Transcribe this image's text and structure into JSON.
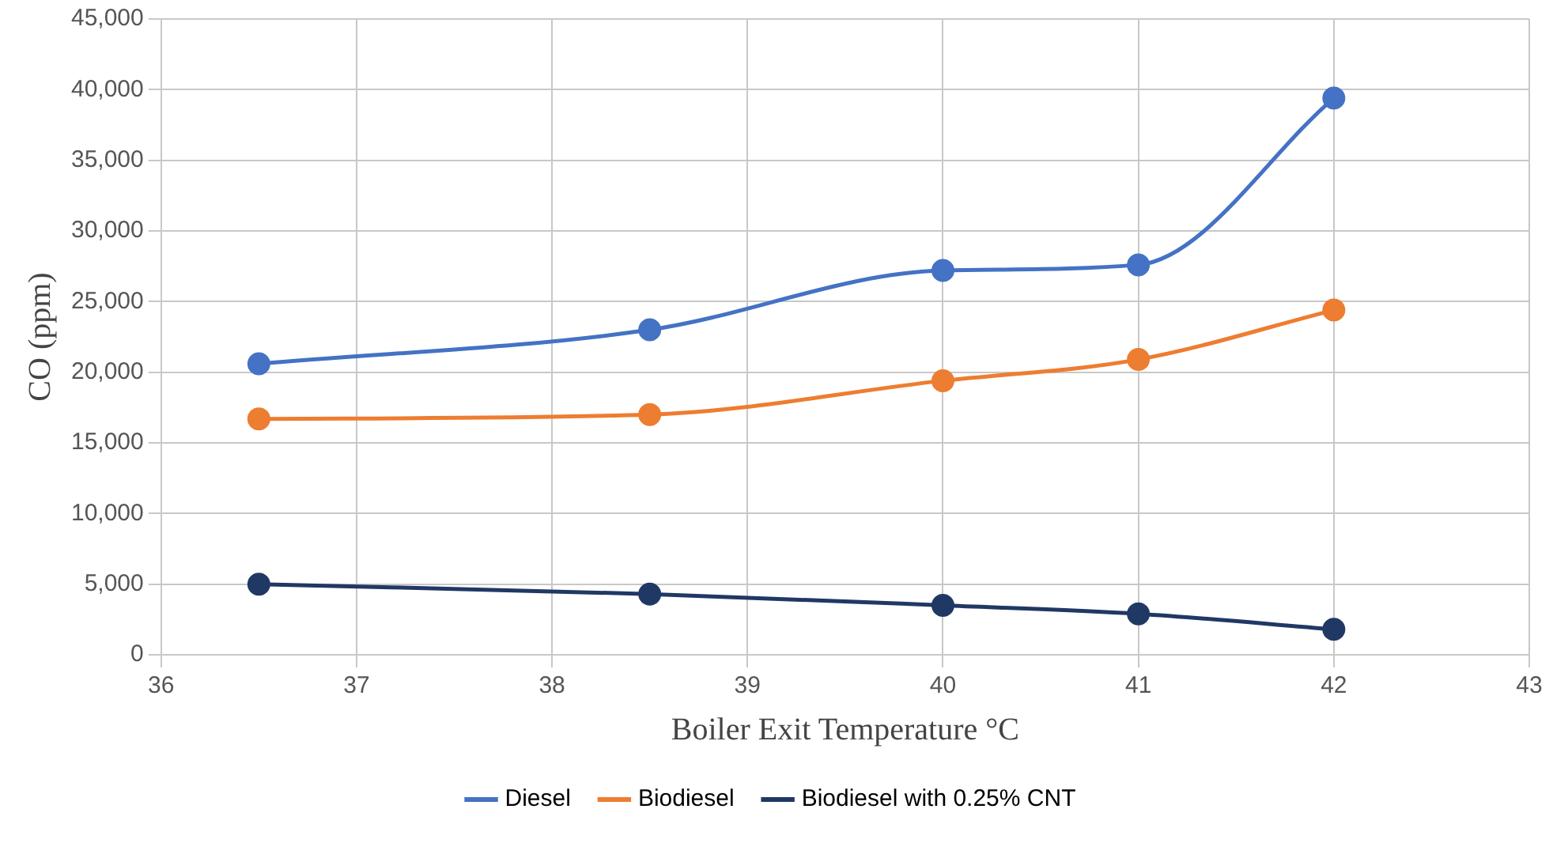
{
  "chart_data": {
    "type": "line",
    "xlabel": "Boiler Exit Temperature °C",
    "ylabel": "CO (ppm)",
    "x": [
      36.5,
      38.5,
      40,
      41,
      42
    ],
    "series": [
      {
        "name": "Diesel",
        "color": "#4472c4",
        "values": [
          20600,
          23000,
          27200,
          27600,
          39400
        ]
      },
      {
        "name": "Biodiesel",
        "color": "#ed7d31",
        "values": [
          16700,
          17000,
          19400,
          20900,
          24400
        ]
      },
      {
        "name": "Biodiesel with 0.25% CNT",
        "color": "#203864",
        "values": [
          5000,
          4300,
          3500,
          2900,
          1800
        ]
      }
    ],
    "xlim": [
      36,
      43
    ],
    "xticks": [
      36,
      37,
      38,
      39,
      40,
      41,
      42,
      43
    ],
    "ylim": [
      0,
      45000
    ],
    "yticks": [
      {
        "value": 0,
        "label": "0"
      },
      {
        "value": 5000,
        "label": "5,000"
      },
      {
        "value": 10000,
        "label": "10,000"
      },
      {
        "value": 15000,
        "label": "15,000"
      },
      {
        "value": 20000,
        "label": "20,000"
      },
      {
        "value": 25000,
        "label": "25,000"
      },
      {
        "value": 30000,
        "label": "30,000"
      },
      {
        "value": 35000,
        "label": "35,000"
      },
      {
        "value": 40000,
        "label": "40,000"
      },
      {
        "value": 45000,
        "label": "45,000"
      }
    ],
    "grid": true,
    "legend": "bottom",
    "marker": "circle",
    "line_style": "solid"
  }
}
